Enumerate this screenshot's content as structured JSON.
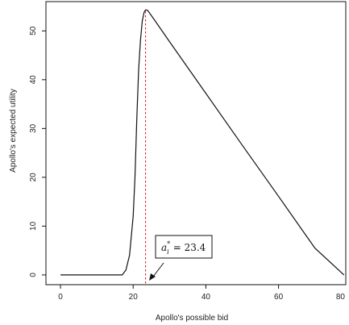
{
  "chart_data": {
    "type": "line",
    "title": "",
    "xlabel": "Apollo's possible bid",
    "ylabel": "Apollo's expected utility",
    "xlim": [
      -4,
      78.5
    ],
    "ylim": [
      -2,
      56
    ],
    "xticks": [
      0,
      20,
      40,
      60,
      80
    ],
    "xtick_labels": [
      "0",
      "20",
      "40",
      "60",
      "80"
    ],
    "yticks": [
      0,
      10,
      20,
      30,
      40,
      50
    ],
    "ytick_labels": [
      "0",
      "10",
      "20",
      "30",
      "40",
      "50"
    ],
    "grid": false,
    "series": [
      {
        "x": [
          0,
          10,
          17,
          18,
          19,
          20,
          20.5,
          21,
          21.5,
          22,
          22.5,
          23,
          23.4,
          24,
          26,
          30,
          40,
          50,
          60,
          70,
          78
        ],
        "y": [
          0,
          0,
          0,
          1,
          4,
          12,
          20,
          32,
          42,
          48,
          52,
          53.8,
          54.3,
          54.2,
          52.1,
          47.8,
          37.2,
          26.6,
          16.1,
          5.5,
          0
        ],
        "color": "#111111"
      }
    ],
    "reference_line": {
      "x": 23.4,
      "color": "#d9232a",
      "style": "dotted"
    },
    "annotation": {
      "text": "a*ᵢ = 23.4",
      "value": 23.4
    }
  }
}
